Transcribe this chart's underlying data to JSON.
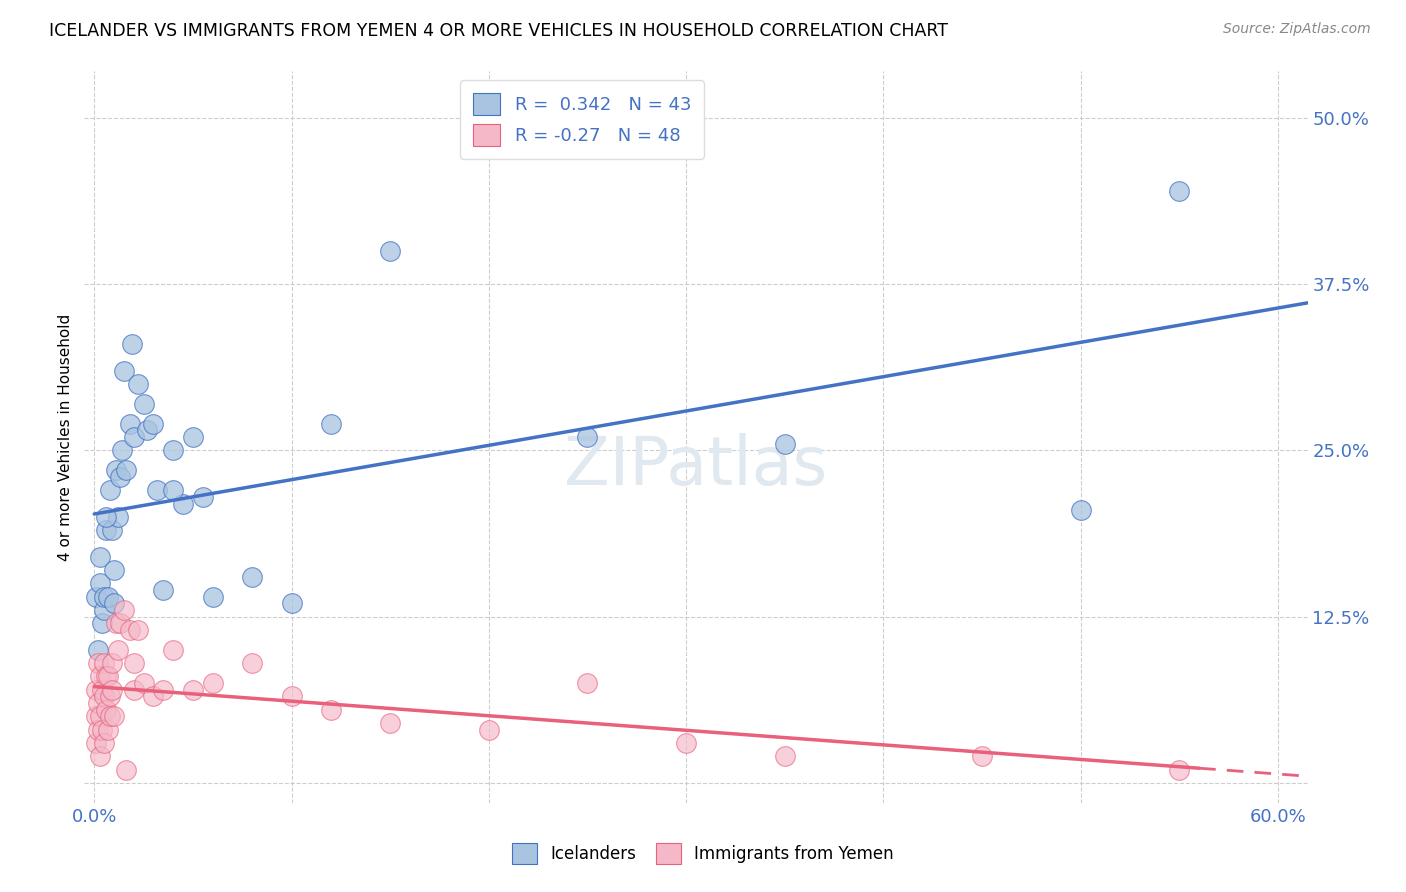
{
  "title": "ICELANDER VS IMMIGRANTS FROM YEMEN 4 OR MORE VEHICLES IN HOUSEHOLD CORRELATION CHART",
  "source": "Source: ZipAtlas.com",
  "ylabel": "4 or more Vehicles in Household",
  "icelanders_color": "#a8c4e0",
  "yemen_color": "#f4b8c8",
  "icelanders_line_color": "#4472c4",
  "yemen_line_color": "#e8607a",
  "R_icelanders": 0.342,
  "N_icelanders": 43,
  "R_yemen": -0.27,
  "N_yemen": 48,
  "icelanders_x": [
    0.001,
    0.002,
    0.003,
    0.004,
    0.005,
    0.005,
    0.006,
    0.007,
    0.008,
    0.009,
    0.01,
    0.011,
    0.012,
    0.013,
    0.014,
    0.015,
    0.016,
    0.018,
    0.019,
    0.02,
    0.022,
    0.025,
    0.027,
    0.03,
    0.032,
    0.035,
    0.04,
    0.045,
    0.05,
    0.055,
    0.06,
    0.08,
    0.1,
    0.12,
    0.15,
    0.25,
    0.35,
    0.5,
    0.55,
    0.003,
    0.006,
    0.01,
    0.04
  ],
  "icelanders_y": [
    0.14,
    0.1,
    0.15,
    0.12,
    0.13,
    0.14,
    0.19,
    0.14,
    0.22,
    0.19,
    0.135,
    0.235,
    0.2,
    0.23,
    0.25,
    0.31,
    0.235,
    0.27,
    0.33,
    0.26,
    0.3,
    0.285,
    0.265,
    0.27,
    0.22,
    0.145,
    0.25,
    0.21,
    0.26,
    0.215,
    0.14,
    0.155,
    0.135,
    0.27,
    0.4,
    0.26,
    0.255,
    0.205,
    0.445,
    0.17,
    0.2,
    0.16,
    0.22
  ],
  "yemen_x": [
    0.001,
    0.001,
    0.001,
    0.002,
    0.002,
    0.002,
    0.003,
    0.003,
    0.003,
    0.004,
    0.004,
    0.005,
    0.005,
    0.005,
    0.006,
    0.006,
    0.007,
    0.007,
    0.008,
    0.008,
    0.009,
    0.009,
    0.01,
    0.011,
    0.012,
    0.013,
    0.015,
    0.016,
    0.018,
    0.02,
    0.02,
    0.022,
    0.025,
    0.03,
    0.035,
    0.04,
    0.05,
    0.06,
    0.08,
    0.1,
    0.12,
    0.15,
    0.2,
    0.25,
    0.3,
    0.35,
    0.45,
    0.55
  ],
  "yemen_y": [
    0.03,
    0.05,
    0.07,
    0.04,
    0.06,
    0.09,
    0.02,
    0.05,
    0.08,
    0.04,
    0.07,
    0.03,
    0.065,
    0.09,
    0.055,
    0.08,
    0.04,
    0.08,
    0.05,
    0.065,
    0.07,
    0.09,
    0.05,
    0.12,
    0.1,
    0.12,
    0.13,
    0.01,
    0.115,
    0.09,
    0.07,
    0.115,
    0.075,
    0.065,
    0.07,
    0.1,
    0.07,
    0.075,
    0.09,
    0.065,
    0.055,
    0.045,
    0.04,
    0.075,
    0.03,
    0.02,
    0.02,
    0.01
  ],
  "background_color": "#ffffff",
  "grid_color": "#c8c8c8",
  "xlim": [
    -0.005,
    0.615
  ],
  "ylim": [
    -0.015,
    0.535
  ],
  "x_ticks": [
    0.0,
    0.1,
    0.2,
    0.3,
    0.4,
    0.5,
    0.6
  ],
  "y_ticks": [
    0.0,
    0.125,
    0.25,
    0.375,
    0.5
  ]
}
